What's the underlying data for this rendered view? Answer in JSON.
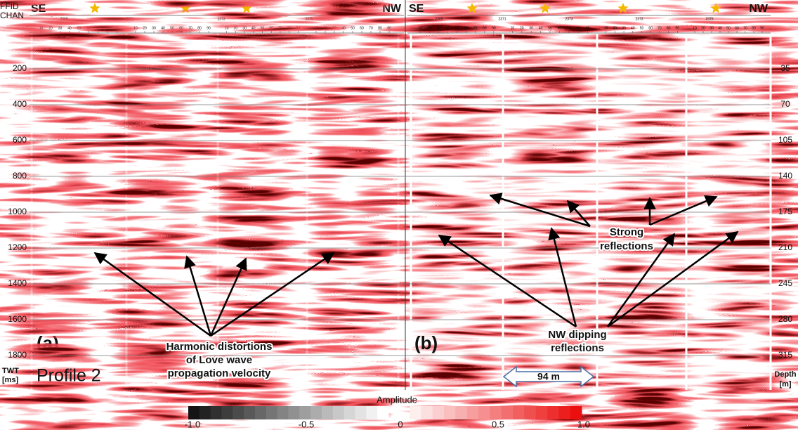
{
  "panels": [
    {
      "label": "(a)",
      "left_heading": "SE",
      "right_heading": "NW",
      "ffid": [
        "2369",
        "2371",
        "2373",
        "2375"
      ]
    },
    {
      "label": "(b)",
      "left_heading": "SE",
      "right_heading": "NW",
      "ffid": [
        "2369",
        "2371",
        "2373",
        "2373",
        "2375"
      ]
    }
  ],
  "header_labels": [
    "FFID",
    "CHAN"
  ],
  "channel_ticks": [
    10,
    20,
    30,
    40,
    50,
    60,
    70,
    80,
    90
  ],
  "time_axis": {
    "title": [
      "TWT",
      "[ms]"
    ],
    "ticks": [
      200,
      400,
      600,
      800,
      1000,
      1200,
      1400,
      1600,
      1800
    ]
  },
  "depth_axis": {
    "title": [
      "Depth",
      "[m]"
    ],
    "ticks": [
      35,
      70,
      105,
      140,
      175,
      210,
      245,
      280,
      315
    ]
  },
  "profile_label": "Profile 2",
  "annotations": {
    "harmonic": [
      "Harmonic distortions",
      "of Love wave",
      "propagation velocity"
    ],
    "strong": [
      "Strong",
      "reflections"
    ],
    "dipping": [
      "NW dipping",
      "reflections"
    ],
    "scale_bar": "94 m"
  },
  "colorbar": {
    "title": "Amplitude",
    "labels": [
      "-1.0",
      "-0.5",
      "0",
      "0.5",
      "1.0"
    ]
  }
}
